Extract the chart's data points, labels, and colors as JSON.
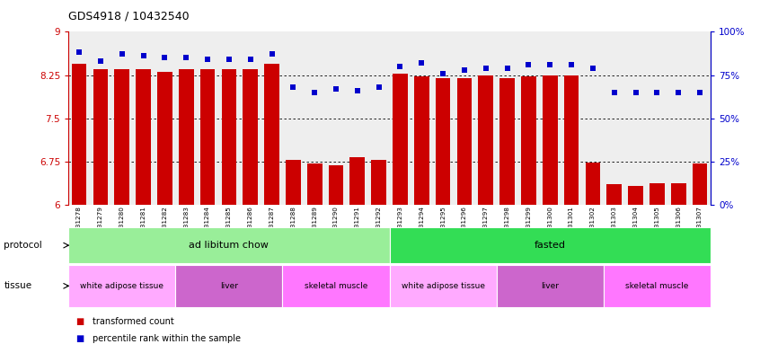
{
  "title": "GDS4918 / 10432540",
  "samples": [
    "GSM1131278",
    "GSM1131279",
    "GSM1131280",
    "GSM1131281",
    "GSM1131282",
    "GSM1131283",
    "GSM1131284",
    "GSM1131285",
    "GSM1131286",
    "GSM1131287",
    "GSM1131288",
    "GSM1131289",
    "GSM1131290",
    "GSM1131291",
    "GSM1131292",
    "GSM1131293",
    "GSM1131294",
    "GSM1131295",
    "GSM1131296",
    "GSM1131297",
    "GSM1131298",
    "GSM1131299",
    "GSM1131300",
    "GSM1131301",
    "GSM1131302",
    "GSM1131303",
    "GSM1131304",
    "GSM1131305",
    "GSM1131306",
    "GSM1131307"
  ],
  "bar_values": [
    8.45,
    8.35,
    8.35,
    8.35,
    8.3,
    8.35,
    8.35,
    8.35,
    8.35,
    8.45,
    6.78,
    6.72,
    6.68,
    6.82,
    6.78,
    8.28,
    8.22,
    8.2,
    8.2,
    8.25,
    8.2,
    8.22,
    8.25,
    8.25,
    6.73,
    6.35,
    6.33,
    6.37,
    6.38,
    6.72
  ],
  "percentile_values": [
    88,
    83,
    87,
    86,
    85,
    85,
    84,
    84,
    84,
    87,
    68,
    65,
    67,
    66,
    68,
    80,
    82,
    76,
    78,
    79,
    79,
    81,
    81,
    81,
    79,
    65,
    65,
    65,
    65,
    65
  ],
  "ylim_left": [
    6.0,
    9.0
  ],
  "ylim_right": [
    0,
    100
  ],
  "yticks_left": [
    6.0,
    6.75,
    7.5,
    8.25,
    9.0
  ],
  "yticks_right": [
    0,
    25,
    50,
    75,
    100
  ],
  "ytick_labels_left": [
    "6",
    "6.75",
    "7.5",
    "8.25",
    "9"
  ],
  "ytick_labels_right": [
    "0%",
    "25%",
    "50%",
    "75%",
    "100%"
  ],
  "gridlines": [
    6.75,
    7.5,
    8.25
  ],
  "protocol_groups": [
    {
      "label": "ad libitum chow",
      "start": 0,
      "end": 14,
      "color": "#99EE99"
    },
    {
      "label": "fasted",
      "start": 15,
      "end": 29,
      "color": "#33DD55"
    }
  ],
  "tissue_groups": [
    {
      "label": "white adipose tissue",
      "start": 0,
      "end": 4,
      "color": "#FFAAFF"
    },
    {
      "label": "liver",
      "start": 5,
      "end": 9,
      "color": "#CC66CC"
    },
    {
      "label": "skeletal muscle",
      "start": 10,
      "end": 14,
      "color": "#FF77FF"
    },
    {
      "label": "white adipose tissue",
      "start": 15,
      "end": 19,
      "color": "#FFAAFF"
    },
    {
      "label": "liver",
      "start": 20,
      "end": 24,
      "color": "#CC66CC"
    },
    {
      "label": "skeletal muscle",
      "start": 25,
      "end": 29,
      "color": "#FF77FF"
    }
  ],
  "bar_color": "#CC0000",
  "dot_color": "#0000CC",
  "tick_color_left": "#CC0000",
  "tick_color_right": "#0000CC",
  "chart_bg": "#EEEEEE",
  "legend_label1": "transformed count",
  "legend_label2": "percentile rank within the sample",
  "protocol_label": "protocol",
  "tissue_label": "tissue"
}
